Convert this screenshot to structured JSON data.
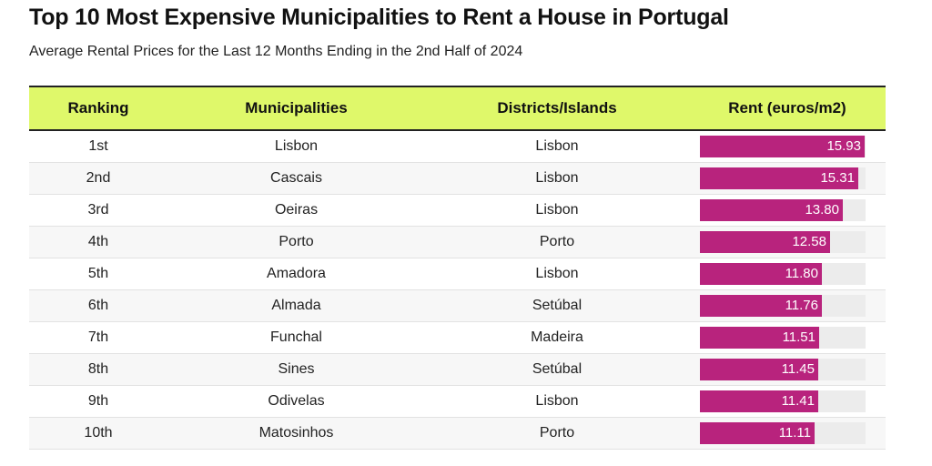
{
  "title": "Top 10 Most Expensive Municipalities to Rent a House in Portugal",
  "subtitle": "Average Rental Prices for the Last 12 Months Ending in the 2nd Half of 2024",
  "headers": [
    "Ranking",
    "Municipalities",
    "Districts/Islands",
    "Rent (euros/m2)"
  ],
  "colors": {
    "header_bg": "#dff86a",
    "bar": "#b8237d",
    "bar_track": "#ececec"
  },
  "chart_data": {
    "type": "table",
    "title": "Top 10 Most Expensive Municipalities to Rent a House in Portugal",
    "subtitle": "Average Rental Prices for the Last 12 Months Ending in the 2nd Half of 2024",
    "columns": [
      "Ranking",
      "Municipalities",
      "Districts/Islands",
      "Rent (euros/m2)"
    ],
    "bar_scale_max": 16,
    "rows": [
      {
        "rank": "1st",
        "municipality": "Lisbon",
        "district": "Lisbon",
        "rent": 15.93,
        "rent_label": "15.93"
      },
      {
        "rank": "2nd",
        "municipality": "Cascais",
        "district": "Lisbon",
        "rent": 15.31,
        "rent_label": "15.31"
      },
      {
        "rank": "3rd",
        "municipality": "Oeiras",
        "district": "Lisbon",
        "rent": 13.8,
        "rent_label": "13.80"
      },
      {
        "rank": "4th",
        "municipality": "Porto",
        "district": "Porto",
        "rent": 12.58,
        "rent_label": "12.58"
      },
      {
        "rank": "5th",
        "municipality": "Amadora",
        "district": "Lisbon",
        "rent": 11.8,
        "rent_label": "11.80"
      },
      {
        "rank": "6th",
        "municipality": "Almada",
        "district": "Setúbal",
        "rent": 11.76,
        "rent_label": "11.76"
      },
      {
        "rank": "7th",
        "municipality": "Funchal",
        "district": "Madeira",
        "rent": 11.51,
        "rent_label": "11.51"
      },
      {
        "rank": "8th",
        "municipality": "Sines",
        "district": "Setúbal",
        "rent": 11.45,
        "rent_label": "11.45"
      },
      {
        "rank": "9th",
        "municipality": "Odivelas",
        "district": "Lisbon",
        "rent": 11.41,
        "rent_label": "11.41"
      },
      {
        "rank": "10th",
        "municipality": "Matosinhos",
        "district": "Porto",
        "rent": 11.11,
        "rent_label": "11.11"
      }
    ]
  }
}
